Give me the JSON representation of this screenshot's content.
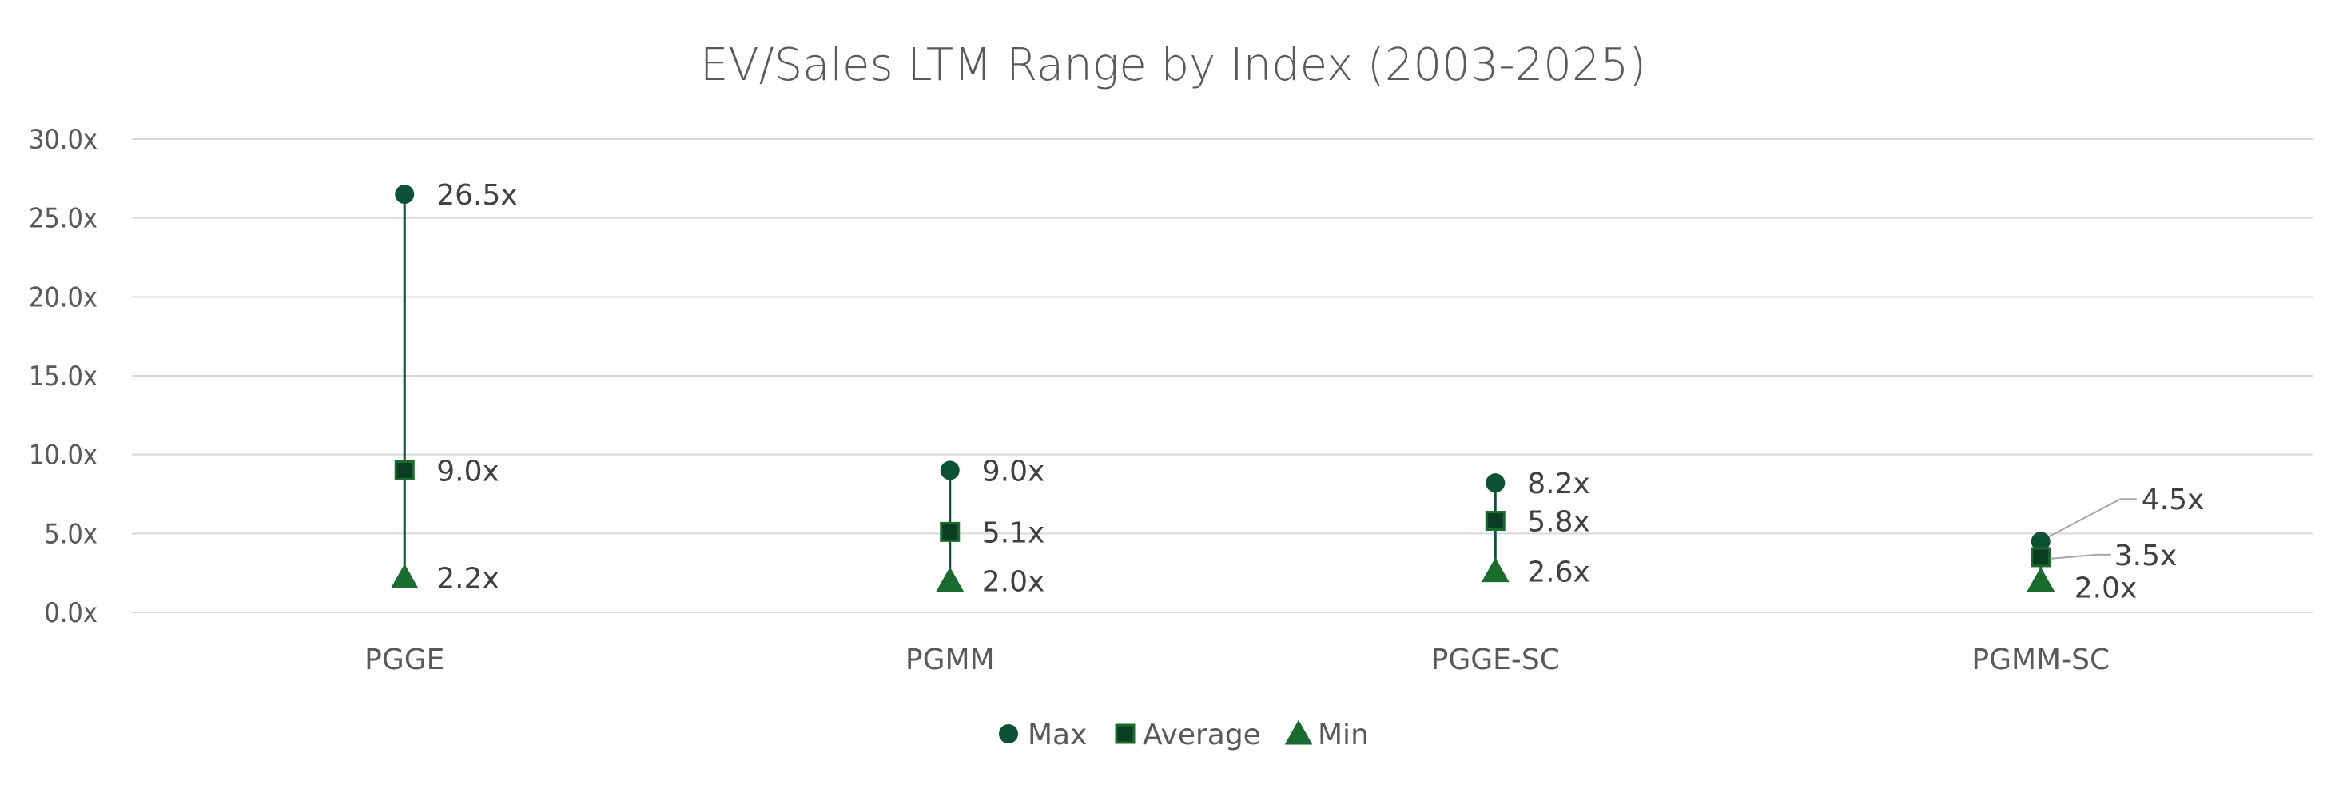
{
  "chart_data": {
    "type": "scatter",
    "title": "EV/Sales LTM Range by Index (2003-2025)",
    "categories": [
      "PGGE",
      "PGMM",
      "PGGE-SC",
      "PGMM-SC"
    ],
    "series": [
      {
        "name": "Max",
        "values": [
          26.5,
          9.0,
          8.2,
          4.5
        ],
        "labels": [
          "26.5x",
          "9.0x",
          "8.2x",
          "4.5x"
        ]
      },
      {
        "name": "Average",
        "values": [
          9.0,
          5.1,
          5.8,
          3.5
        ],
        "labels": [
          "9.0x",
          "5.1x",
          "5.8x",
          "3.5x"
        ]
      },
      {
        "name": "Min",
        "values": [
          2.2,
          2.0,
          2.6,
          2.0
        ],
        "labels": [
          "2.2x",
          "2.0x",
          "2.6x",
          "2.0x"
        ]
      }
    ],
    "y_ticks": [
      "0.0x",
      "5.0x",
      "10.0x",
      "15.0x",
      "20.0x",
      "25.0x",
      "30.0x"
    ],
    "ylim": [
      0,
      30
    ],
    "grid": true,
    "legend_position": "bottom",
    "colors": {
      "max": "#0b5134",
      "average": "#0b5134",
      "min": "#1a6b2e",
      "range_line": "#0b5134",
      "leader_line": "#a6a6a6"
    }
  }
}
